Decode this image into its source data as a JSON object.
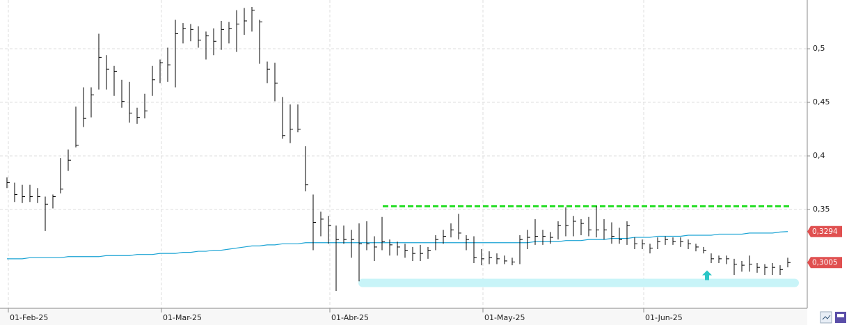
{
  "chart_data": {
    "type": "ohlc",
    "categories": [
      "01-Feb-25",
      null,
      null,
      null,
      null,
      null,
      null,
      null,
      null,
      null,
      null,
      null,
      null,
      null,
      null,
      null,
      null,
      null,
      null,
      null,
      "01-Mar-25",
      null,
      null,
      null,
      null,
      null,
      null,
      null,
      null,
      null,
      null,
      null,
      null,
      null,
      null,
      null,
      null,
      null,
      null,
      null,
      null,
      null,
      "01-Abr-25",
      null,
      null,
      null,
      null,
      null,
      null,
      null,
      null,
      null,
      null,
      null,
      null,
      null,
      null,
      null,
      null,
      null,
      null,
      null,
      "01-May-25",
      null,
      null,
      null,
      null,
      null,
      null,
      null,
      null,
      null,
      null,
      null,
      null,
      null,
      null,
      null,
      null,
      null,
      null,
      null,
      null,
      "01-Jun-25",
      null,
      null,
      null,
      null,
      null,
      null,
      null,
      null,
      null,
      null,
      null,
      null,
      null,
      null,
      null,
      null,
      null,
      null,
      null
    ],
    "high": [
      0.38,
      0.375,
      0.373,
      0.373,
      0.37,
      0.362,
      0.364,
      0.398,
      0.406,
      0.446,
      0.464,
      0.464,
      0.514,
      0.494,
      0.484,
      0.471,
      0.469,
      0.445,
      0.458,
      0.484,
      0.49,
      0.501,
      0.527,
      0.524,
      0.523,
      0.521,
      0.516,
      0.519,
      0.526,
      0.525,
      0.536,
      0.538,
      0.539,
      0.527,
      0.488,
      0.487,
      0.455,
      0.448,
      0.448,
      0.409,
      0.364,
      0.348,
      0.344,
      0.335,
      0.335,
      0.331,
      0.337,
      0.339,
      0.325,
      0.343,
      0.322,
      0.32,
      0.318,
      0.315,
      0.317,
      0.315,
      0.326,
      0.331,
      0.337,
      0.346,
      0.326,
      0.325,
      0.313,
      0.311,
      0.309,
      0.307,
      0.305,
      0.326,
      0.331,
      0.341,
      0.331,
      0.329,
      0.339,
      0.352,
      0.344,
      0.341,
      0.343,
      0.353,
      0.341,
      0.338,
      0.333,
      0.339,
      0.324,
      0.322,
      0.318,
      0.324,
      0.325,
      0.324,
      0.324,
      0.322,
      0.318,
      0.315,
      0.309,
      0.307,
      0.307,
      0.304,
      0.302,
      0.307,
      0.3,
      0.299,
      0.3,
      0.298,
      0.305
    ],
    "low": [
      0.37,
      0.357,
      0.356,
      0.357,
      0.356,
      0.33,
      0.351,
      0.365,
      0.386,
      0.408,
      0.427,
      0.436,
      0.462,
      0.462,
      0.456,
      0.445,
      0.431,
      0.43,
      0.435,
      0.456,
      0.468,
      0.469,
      0.464,
      0.505,
      0.507,
      0.501,
      0.49,
      0.494,
      0.499,
      0.505,
      0.497,
      0.513,
      0.516,
      0.486,
      0.468,
      0.451,
      0.416,
      0.412,
      0.422,
      0.367,
      0.312,
      0.325,
      0.318,
      0.274,
      0.318,
      0.305,
      0.283,
      0.312,
      0.302,
      0.312,
      0.307,
      0.307,
      0.305,
      0.302,
      0.302,
      0.304,
      0.312,
      0.318,
      0.324,
      0.322,
      0.312,
      0.3,
      0.298,
      0.299,
      0.299,
      0.299,
      0.298,
      0.299,
      0.313,
      0.317,
      0.317,
      0.318,
      0.322,
      0.325,
      0.325,
      0.326,
      0.325,
      0.324,
      0.322,
      0.318,
      0.318,
      0.317,
      0.313,
      0.313,
      0.309,
      0.313,
      0.317,
      0.317,
      0.315,
      0.313,
      0.311,
      0.309,
      0.3,
      0.3,
      0.299,
      0.289,
      0.292,
      0.292,
      0.291,
      0.289,
      0.289,
      0.289,
      0.296
    ],
    "close": [
      0.375,
      0.364,
      0.362,
      0.362,
      0.362,
      0.355,
      0.362,
      0.369,
      0.396,
      0.41,
      0.435,
      0.457,
      0.492,
      0.481,
      0.479,
      0.451,
      0.44,
      0.436,
      0.442,
      0.471,
      0.487,
      0.485,
      0.514,
      0.519,
      0.518,
      0.508,
      0.512,
      0.507,
      0.518,
      0.519,
      0.523,
      0.526,
      0.536,
      0.525,
      0.481,
      0.468,
      0.419,
      0.425,
      0.425,
      0.373,
      0.338,
      0.341,
      0.335,
      0.322,
      0.322,
      0.322,
      0.318,
      0.318,
      0.315,
      0.32,
      0.317,
      0.315,
      0.312,
      0.309,
      0.309,
      0.312,
      0.322,
      0.325,
      0.331,
      0.328,
      0.322,
      0.305,
      0.304,
      0.305,
      0.304,
      0.302,
      0.301,
      0.322,
      0.324,
      0.325,
      0.325,
      0.324,
      0.335,
      0.335,
      0.339,
      0.337,
      0.331,
      0.331,
      0.331,
      0.325,
      0.322,
      0.335,
      0.318,
      0.318,
      0.314,
      0.32,
      0.322,
      0.32,
      0.32,
      0.318,
      0.315,
      0.312,
      0.304,
      0.304,
      0.304,
      0.299,
      0.298,
      0.299,
      0.296,
      0.296,
      0.296,
      0.294,
      0.3005
    ],
    "color": "#000000",
    "moving_average": {
      "color": "#1aa3d4",
      "values": [
        0.304,
        0.304,
        0.304,
        0.305,
        0.305,
        0.305,
        0.305,
        0.305,
        0.306,
        0.306,
        0.306,
        0.306,
        0.306,
        0.307,
        0.307,
        0.307,
        0.307,
        0.308,
        0.308,
        0.308,
        0.309,
        0.309,
        0.309,
        0.31,
        0.31,
        0.311,
        0.311,
        0.312,
        0.312,
        0.313,
        0.314,
        0.315,
        0.316,
        0.316,
        0.317,
        0.317,
        0.318,
        0.318,
        0.318,
        0.319,
        0.319,
        0.319,
        0.319,
        0.319,
        0.319,
        0.319,
        0.319,
        0.319,
        0.319,
        0.319,
        0.319,
        0.319,
        0.319,
        0.319,
        0.319,
        0.319,
        0.319,
        0.319,
        0.319,
        0.319,
        0.319,
        0.319,
        0.319,
        0.319,
        0.319,
        0.319,
        0.319,
        0.319,
        0.319,
        0.32,
        0.32,
        0.32,
        0.32,
        0.321,
        0.321,
        0.321,
        0.322,
        0.322,
        0.322,
        0.323,
        0.323,
        0.323,
        0.324,
        0.324,
        0.324,
        0.325,
        0.325,
        0.325,
        0.325,
        0.326,
        0.326,
        0.326,
        0.326,
        0.327,
        0.327,
        0.327,
        0.327,
        0.328,
        0.328,
        0.328,
        0.328,
        0.329,
        0.3294
      ]
    },
    "price_tags": [
      {
        "value": 0.3294,
        "label": "0,3294",
        "color": "#e05050"
      },
      {
        "value": 0.3005,
        "label": "0,3005",
        "color": "#e05050"
      }
    ],
    "resistance": {
      "value": 0.353,
      "color": "#22dd22"
    },
    "support": {
      "value": 0.2815,
      "color": "#c8f4f8"
    },
    "ylim": [
      0.2578,
      0.5455
    ],
    "yticks": [
      {
        "value": 0.35,
        "label": "0,35"
      },
      {
        "value": 0.4,
        "label": "0,4"
      },
      {
        "value": 0.45,
        "label": "0,45"
      },
      {
        "value": 0.5,
        "label": "0,5"
      }
    ],
    "grid": true
  }
}
